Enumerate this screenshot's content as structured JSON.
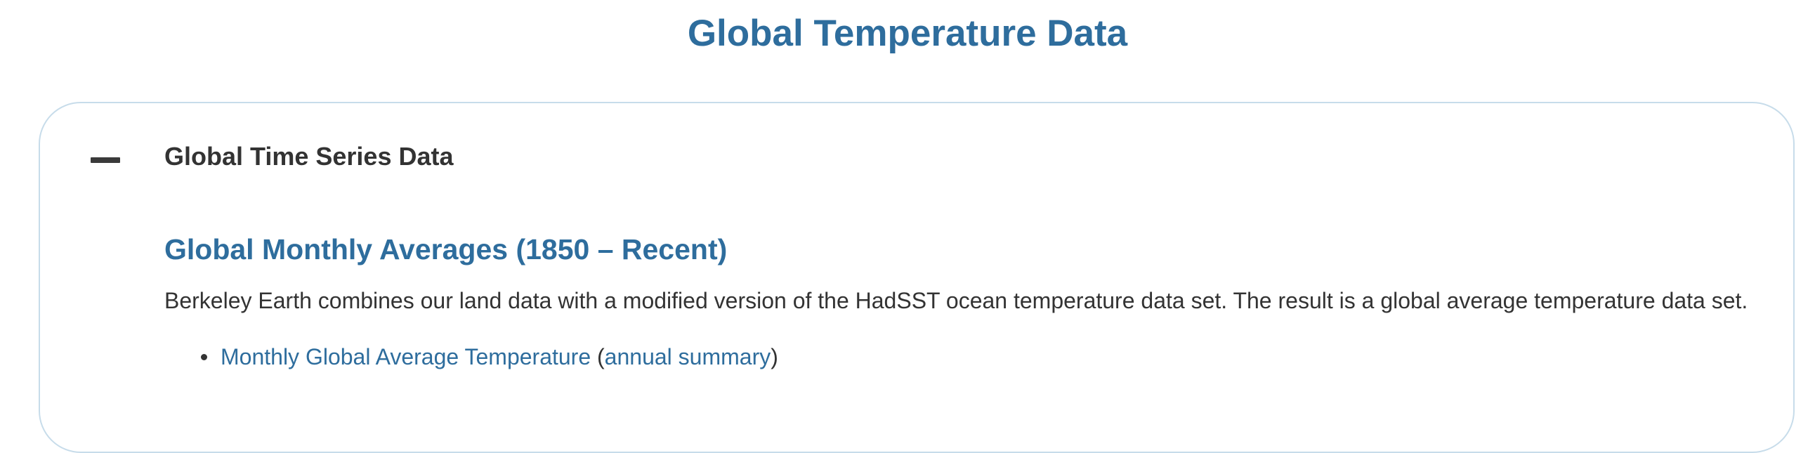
{
  "page": {
    "title": "Global Temperature Data"
  },
  "accordion": {
    "toggle_icon": "minus-icon",
    "title": "Global Time Series Data",
    "expanded": true,
    "border_color": "#c7dcea"
  },
  "section": {
    "heading": "Global Monthly Averages (1850 – Recent)",
    "description": "Berkeley Earth combines our land data with a modified version of the HadSST ocean temperature data set. The result is a global average temperature data set.",
    "links": [
      {
        "label": "Monthly Global Average Temperature",
        "paren_open": " (",
        "secondary_label": "annual summary",
        "paren_close": ")"
      }
    ]
  },
  "colors": {
    "accent": "#2e6d9d",
    "text": "#333333",
    "background": "#ffffff"
  }
}
